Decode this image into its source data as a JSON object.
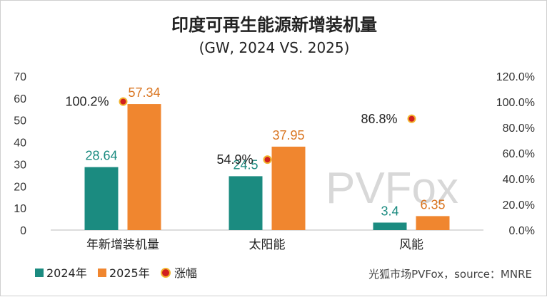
{
  "chart_data": {
    "type": "bar",
    "title": "印度可再生能源新增装机量",
    "subtitle": "(GW, 2024 VS. 2025)",
    "categories": [
      "年新增装机量",
      "太阳能",
      "风能"
    ],
    "series": [
      {
        "name": "2024年",
        "values": [
          28.64,
          24.5,
          3.4
        ],
        "labels": [
          "28.64",
          "24.5",
          "3.4"
        ],
        "color": "#1b8b80",
        "label_color": "#1b8b80"
      },
      {
        "name": "2025年",
        "values": [
          57.34,
          37.95,
          6.35
        ],
        "labels": [
          "57.34",
          "37.95",
          "6.35"
        ],
        "color": "#f0862f",
        "label_color": "#d9741f"
      }
    ],
    "growth": {
      "name": "涨幅",
      "values": [
        100.2,
        54.9,
        86.8
      ],
      "labels": [
        "100.2%",
        "54.9%",
        "86.8%"
      ],
      "marker_fill": "#d11f1f",
      "marker_ring": "#f2b42f"
    },
    "y_left": {
      "range": [
        0,
        70
      ],
      "ticks": [
        "0",
        "10",
        "20",
        "30",
        "40",
        "50",
        "60",
        "70"
      ]
    },
    "y_right": {
      "range": [
        0,
        120
      ],
      "ticks": [
        "0.0%",
        "20.0%",
        "40.0%",
        "60.0%",
        "80.0%",
        "100.0%",
        "120.0%"
      ]
    },
    "watermark": "PVFox",
    "source": "光狐市场PVFox，source：MNRE"
  }
}
